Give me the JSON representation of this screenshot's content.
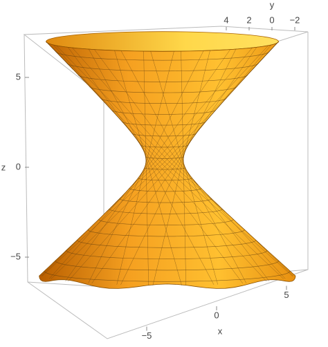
{
  "chart_data": {
    "type": "surface3d",
    "xlabel": "x",
    "ylabel": "y",
    "zlabel": "z",
    "xticks": [
      {
        "value": -5,
        "label": "−5"
      },
      0,
      5
    ],
    "yticks": [
      4,
      2,
      0,
      {
        "value": -2,
        "label": "−2"
      }
    ],
    "zticks": [
      {
        "value": -5,
        "label": "−5"
      },
      0,
      5
    ],
    "color": "#ffb020"
  }
}
